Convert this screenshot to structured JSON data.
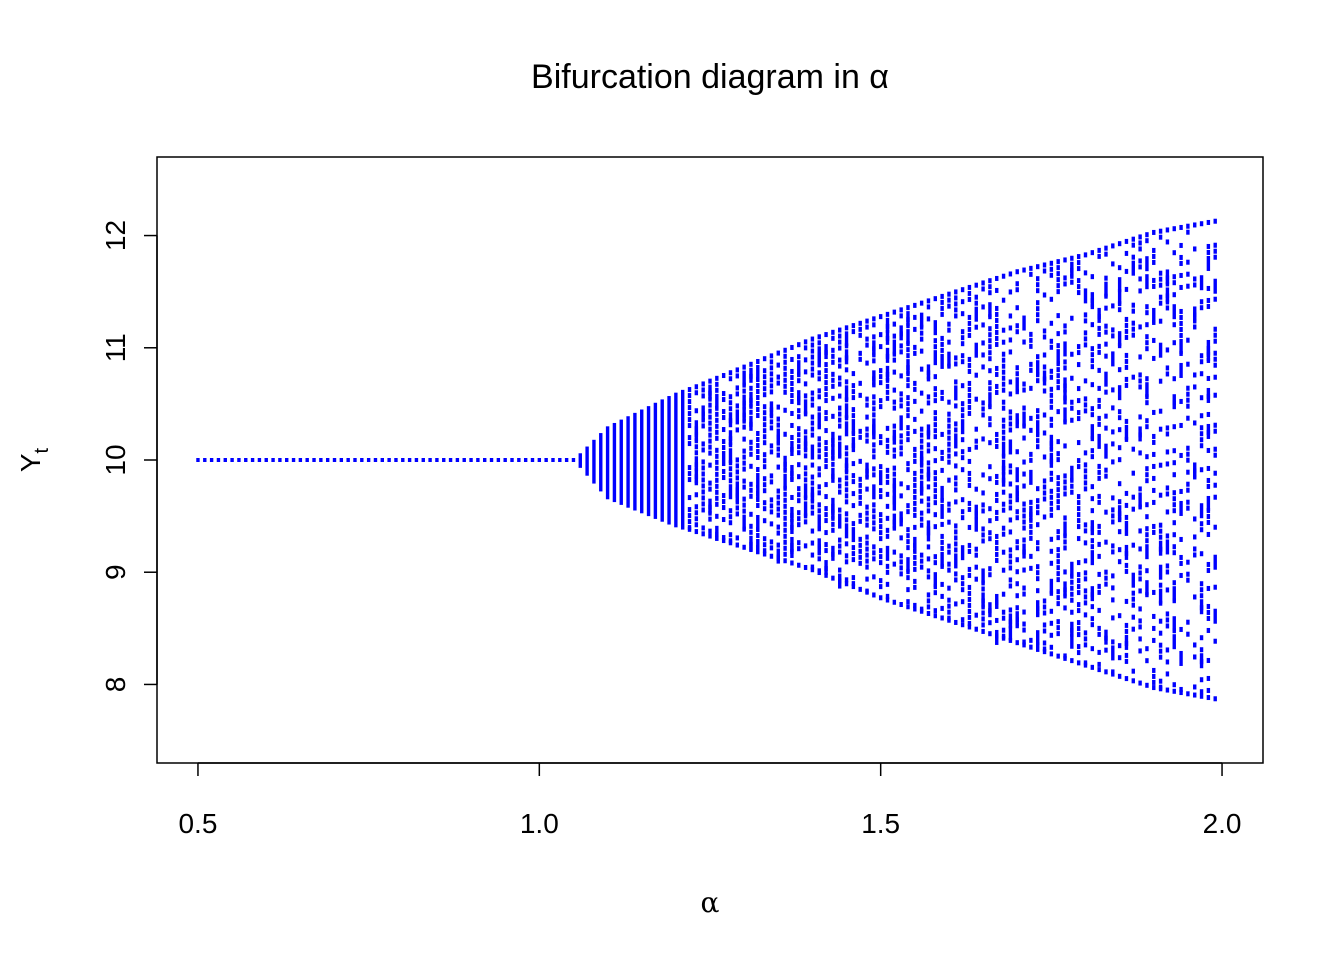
{
  "chart_data": {
    "type": "scatter",
    "title": "Bifurcation diagram in α",
    "xlabel": "α",
    "ylabel_main": "Y",
    "ylabel_sub": "t",
    "xlim": [
      0.44,
      2.06
    ],
    "ylim": [
      7.3,
      12.7
    ],
    "x_ticks": [
      0.5,
      1.0,
      1.5,
      2.0
    ],
    "x_tick_labels": [
      "0.5",
      "1.0",
      "1.5",
      "2.0"
    ],
    "y_ticks": [
      8,
      9,
      10,
      11,
      12
    ],
    "y_tick_labels": [
      "8",
      "9",
      "10",
      "11",
      "12"
    ],
    "grid": false,
    "legend": "none",
    "point_color": "#0000ff",
    "series": [
      {
        "description": "Long-run Y_t values per α; fixed point Y_t = 10 for α ≤ ~1.05, band then widens to about [7.85, 12.15] at α = 1.99",
        "alpha_range": [
          0.5,
          1.99
        ],
        "alpha_step": 0.01,
        "fixed_point": 10.0,
        "bifurcation_alpha": 1.05,
        "envelope": [
          {
            "alpha": 1.05,
            "low": 10.0,
            "high": 10.0
          },
          {
            "alpha": 1.1,
            "low": 9.65,
            "high": 10.3
          },
          {
            "alpha": 1.2,
            "low": 9.4,
            "high": 10.6
          },
          {
            "alpha": 1.3,
            "low": 9.2,
            "high": 10.85
          },
          {
            "alpha": 1.4,
            "low": 9.0,
            "high": 11.1
          },
          {
            "alpha": 1.5,
            "low": 8.75,
            "high": 11.3
          },
          {
            "alpha": 1.6,
            "low": 8.55,
            "high": 11.5
          },
          {
            "alpha": 1.7,
            "low": 8.35,
            "high": 11.7
          },
          {
            "alpha": 1.8,
            "low": 8.15,
            "high": 11.85
          },
          {
            "alpha": 1.9,
            "low": 7.95,
            "high": 12.05
          },
          {
            "alpha": 1.99,
            "low": 7.85,
            "high": 12.15
          }
        ]
      }
    ]
  }
}
